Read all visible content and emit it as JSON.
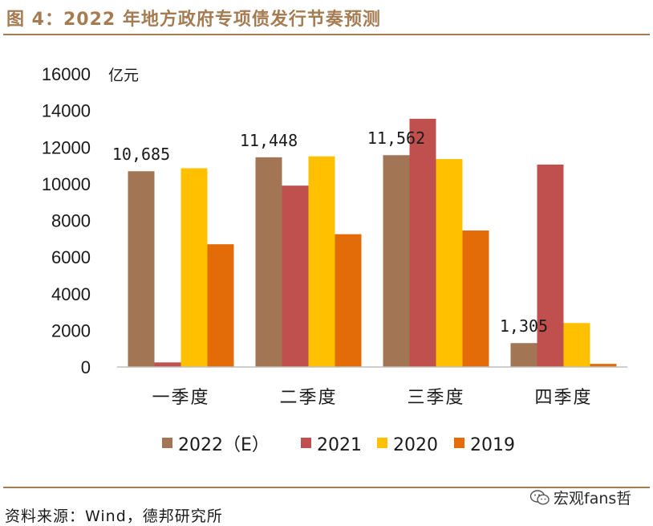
{
  "header": {
    "title": "图 4：2022 年地方政府专项债发行节奏预测"
  },
  "footer": {
    "source": "资料来源：Wind，德邦研究所"
  },
  "watermark": {
    "text": "宏观fans哲",
    "icon": "wechat-icon"
  },
  "chart_data": {
    "type": "bar",
    "categories": [
      "一季度",
      "二季度",
      "三季度",
      "四季度"
    ],
    "series": [
      {
        "name": "2022（E）",
        "color": "#a27555",
        "values": [
          10685,
          11448,
          11562,
          1305
        ]
      },
      {
        "name": "2021",
        "color": "#c0504d",
        "values": [
          250,
          9900,
          13550,
          11050
        ]
      },
      {
        "name": "2020",
        "color": "#ffc000",
        "values": [
          10850,
          11500,
          11350,
          2400
        ]
      },
      {
        "name": "2019",
        "color": "#e36c09",
        "values": [
          6700,
          7250,
          7450,
          170
        ]
      }
    ],
    "data_labels": {
      "series": 0,
      "texts": [
        "10,685",
        "11,448",
        "11,562",
        "1,305"
      ]
    },
    "ylim": [
      0,
      16000
    ],
    "yticks": [
      0,
      2000,
      4000,
      6000,
      8000,
      10000,
      12000,
      14000,
      16000
    ],
    "ylabel": "亿元",
    "legend": "bottom",
    "grid": false
  }
}
